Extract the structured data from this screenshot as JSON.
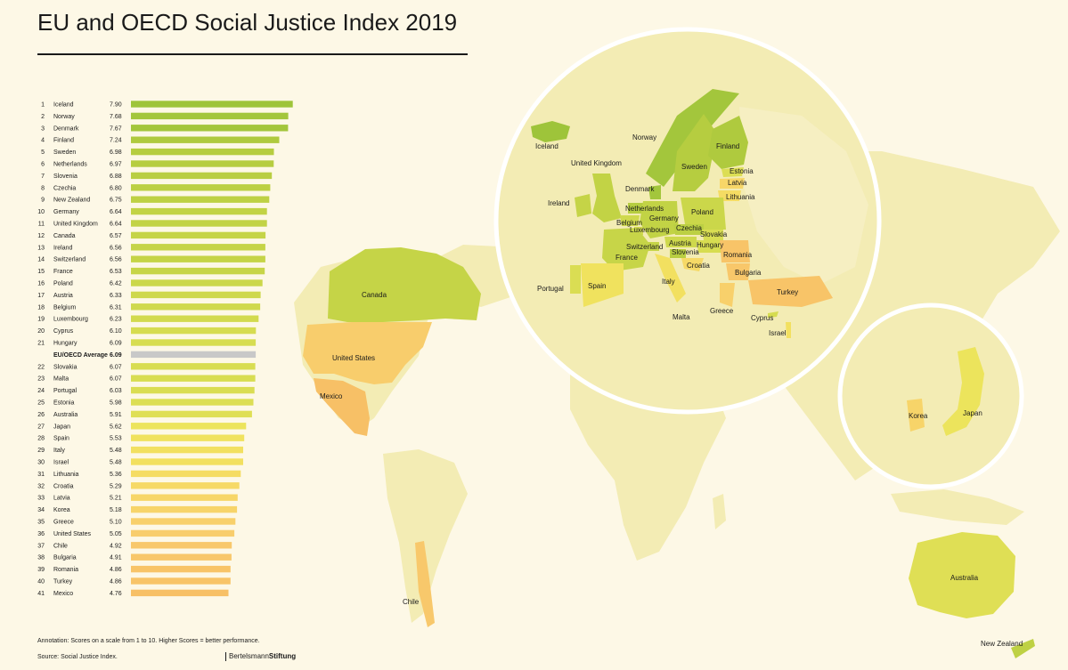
{
  "title": "EU and OECD Social Justice Index 2019",
  "annotation": "Annotation: Scores on a scale from 1 to 10. Higher Scores = better performance.",
  "source": "Source: Social Justice Index.",
  "brand": {
    "part1": "Bertelsmann",
    "part2": "Stiftung"
  },
  "colors": {
    "background": "#fdf8e6",
    "land": "#f3ecb4",
    "average": "#c8c8c8"
  },
  "chart_data": {
    "type": "bar",
    "orientation": "horizontal",
    "xlim": [
      0,
      10
    ],
    "rows": [
      {
        "rank": "1",
        "country": "Iceland",
        "value": 7.9,
        "label": "7.90",
        "color": "#9ec43a"
      },
      {
        "rank": "2",
        "country": "Norway",
        "value": 7.68,
        "label": "7.68",
        "color": "#a3c63c"
      },
      {
        "rank": "3",
        "country": "Denmark",
        "value": 7.67,
        "label": "7.67",
        "color": "#a3c63c"
      },
      {
        "rank": "4",
        "country": "Finland",
        "value": 7.24,
        "label": "7.24",
        "color": "#afca3e"
      },
      {
        "rank": "5",
        "country": "Sweden",
        "value": 6.98,
        "label": "6.98",
        "color": "#b6cd40"
      },
      {
        "rank": "6",
        "country": "Netherlands",
        "value": 6.97,
        "label": "6.97",
        "color": "#b6cd40"
      },
      {
        "rank": "7",
        "country": "Slovenia",
        "value": 6.88,
        "label": "6.88",
        "color": "#b9ce42"
      },
      {
        "rank": "8",
        "country": "Czechia",
        "value": 6.8,
        "label": "6.80",
        "color": "#bcd043"
      },
      {
        "rank": "9",
        "country": "New Zealand",
        "value": 6.75,
        "label": "6.75",
        "color": "#bed144"
      },
      {
        "rank": "10",
        "country": "Germany",
        "value": 6.64,
        "label": "6.64",
        "color": "#c2d345"
      },
      {
        "rank": "11",
        "country": "United Kingdom",
        "value": 6.64,
        "label": "6.64",
        "color": "#c2d345"
      },
      {
        "rank": "12",
        "country": "Canada",
        "value": 6.57,
        "label": "6.57",
        "color": "#c5d447"
      },
      {
        "rank": "13",
        "country": "Ireland",
        "value": 6.56,
        "label": "6.56",
        "color": "#c5d447"
      },
      {
        "rank": "14",
        "country": "Switzerland",
        "value": 6.56,
        "label": "6.56",
        "color": "#c5d447"
      },
      {
        "rank": "15",
        "country": "France",
        "value": 6.53,
        "label": "6.53",
        "color": "#c7d548"
      },
      {
        "rank": "16",
        "country": "Poland",
        "value": 6.42,
        "label": "6.42",
        "color": "#cbd74a"
      },
      {
        "rank": "17",
        "country": "Austria",
        "value": 6.33,
        "label": "6.33",
        "color": "#ced84c"
      },
      {
        "rank": "18",
        "country": "Belgium",
        "value": 6.31,
        "label": "6.31",
        "color": "#cfd94d"
      },
      {
        "rank": "19",
        "country": "Luxembourg",
        "value": 6.23,
        "label": "6.23",
        "color": "#d2da4e"
      },
      {
        "rank": "20",
        "country": "Cyprus",
        "value": 6.1,
        "label": "6.10",
        "color": "#d6dc50"
      },
      {
        "rank": "21",
        "country": "Hungary",
        "value": 6.09,
        "label": "6.09",
        "color": "#d7dd51"
      },
      {
        "rank": "",
        "country": "EU/OECD Average",
        "value": 6.09,
        "label": "6.09",
        "color": "#c8c8c8",
        "average": true
      },
      {
        "rank": "22",
        "country": "Slovakia",
        "value": 6.07,
        "label": "6.07",
        "color": "#d8dd52"
      },
      {
        "rank": "23",
        "country": "Malta",
        "value": 6.07,
        "label": "6.07",
        "color": "#d8dd52"
      },
      {
        "rank": "24",
        "country": "Portugal",
        "value": 6.03,
        "label": "6.03",
        "color": "#dadd53"
      },
      {
        "rank": "25",
        "country": "Estonia",
        "value": 5.98,
        "label": "5.98",
        "color": "#dcde54"
      },
      {
        "rank": "26",
        "country": "Australia",
        "value": 5.91,
        "label": "5.91",
        "color": "#dfdf55"
      },
      {
        "rank": "27",
        "country": "Japan",
        "value": 5.62,
        "label": "5.62",
        "color": "#ece45c"
      },
      {
        "rank": "28",
        "country": "Spain",
        "value": 5.53,
        "label": "5.53",
        "color": "#f0e25e"
      },
      {
        "rank": "29",
        "country": "Italy",
        "value": 5.48,
        "label": "5.48",
        "color": "#f2e060"
      },
      {
        "rank": "30",
        "country": "Israel",
        "value": 5.48,
        "label": "5.48",
        "color": "#f2e060"
      },
      {
        "rank": "31",
        "country": "Lithuania",
        "value": 5.36,
        "label": "5.36",
        "color": "#f5dc63"
      },
      {
        "rank": "32",
        "country": "Croatia",
        "value": 5.29,
        "label": "5.29",
        "color": "#f6d966"
      },
      {
        "rank": "33",
        "country": "Latvia",
        "value": 5.21,
        "label": "5.21",
        "color": "#f7d668"
      },
      {
        "rank": "34",
        "country": "Korea",
        "value": 5.18,
        "label": "5.18",
        "color": "#f7d469"
      },
      {
        "rank": "35",
        "country": "Greece",
        "value": 5.1,
        "label": "5.10",
        "color": "#f8d06b"
      },
      {
        "rank": "36",
        "country": "United States",
        "value": 5.05,
        "label": "5.05",
        "color": "#f8cd6c"
      },
      {
        "rank": "37",
        "country": "Chile",
        "value": 4.92,
        "label": "4.92",
        "color": "#f8c86b"
      },
      {
        "rank": "38",
        "country": "Bulgaria",
        "value": 4.91,
        "label": "4.91",
        "color": "#f8c76a"
      },
      {
        "rank": "39",
        "country": "Romania",
        "value": 4.86,
        "label": "4.86",
        "color": "#f8c468"
      },
      {
        "rank": "40",
        "country": "Turkey",
        "value": 4.86,
        "label": "4.86",
        "color": "#f8c468"
      },
      {
        "rank": "41",
        "country": "Mexico",
        "value": 4.76,
        "label": "4.76",
        "color": "#f7c066"
      }
    ]
  },
  "map_labels": [
    "Canada",
    "United States",
    "Mexico",
    "Chile",
    "Australia",
    "New Zealand",
    "Iceland",
    "Norway",
    "Finland",
    "Sweden",
    "Estonia",
    "Latvia",
    "Lithuania",
    "United Kingdom",
    "Denmark",
    "Ireland",
    "Netherlands",
    "Belgium",
    "Germany",
    "Luxembourg",
    "Poland",
    "Czechia",
    "Slovakia",
    "Switzerland",
    "Austria",
    "Hungary",
    "France",
    "Slovenia",
    "Romania",
    "Croatia",
    "Bulgaria",
    "Portugal",
    "Spain",
    "Italy",
    "Turkey",
    "Greece",
    "Cyprus",
    "Malta",
    "Israel",
    "Korea",
    "Japan"
  ]
}
